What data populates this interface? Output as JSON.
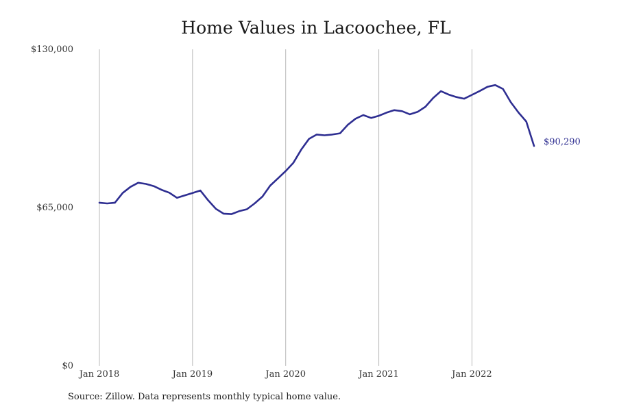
{
  "chart_data": {
    "type": "line",
    "title": "Home Values in Lacoochee, FL",
    "xlabel": "",
    "ylabel": "",
    "x_start": "2018-01",
    "x_tick_labels": [
      "Jan 2018",
      "Jan 2019",
      "Jan 2020",
      "Jan 2021",
      "Jan 2022"
    ],
    "y_tick_labels": [
      "$0",
      "$65,000",
      "$130,000"
    ],
    "ylim": [
      0,
      130000
    ],
    "grid": "vertical",
    "legend": "none",
    "series": [
      {
        "color": "#2e2e91",
        "end_label": "$90,290",
        "x": [
          "2018-01",
          "2018-02",
          "2018-03",
          "2018-04",
          "2018-05",
          "2018-06",
          "2018-07",
          "2018-08",
          "2018-09",
          "2018-10",
          "2018-11",
          "2018-12",
          "2019-01",
          "2019-02",
          "2019-03",
          "2019-04",
          "2019-05",
          "2019-06",
          "2019-07",
          "2019-08",
          "2019-09",
          "2019-10",
          "2019-11",
          "2019-12",
          "2020-01",
          "2020-02",
          "2020-03",
          "2020-04",
          "2020-05",
          "2020-06",
          "2020-07",
          "2020-08",
          "2020-09",
          "2020-10",
          "2020-11",
          "2020-12",
          "2021-01",
          "2021-02",
          "2021-03",
          "2021-04",
          "2021-05",
          "2021-06",
          "2021-07",
          "2021-08",
          "2021-09",
          "2021-10",
          "2021-11",
          "2021-12",
          "2022-01",
          "2022-02",
          "2022-03",
          "2022-04",
          "2022-05",
          "2022-06",
          "2022-07",
          "2022-08",
          "2022-09"
        ],
        "values": [
          67000,
          66700,
          67000,
          71000,
          73500,
          75200,
          74700,
          73800,
          72300,
          71100,
          69000,
          70000,
          71000,
          72000,
          68000,
          64500,
          62500,
          62300,
          63500,
          64300,
          66700,
          69500,
          74000,
          77000,
          80000,
          83400,
          88800,
          93200,
          95000,
          94700,
          95000,
          95500,
          99000,
          101500,
          103000,
          101800,
          102700,
          104000,
          105000,
          104600,
          103300,
          104300,
          106400,
          110000,
          112800,
          111400,
          110400,
          109700,
          111300,
          112900,
          114600,
          115300,
          113700,
          108300,
          104000,
          100300,
          90290
        ]
      }
    ]
  },
  "footer": {
    "source": "Source: Zillow. Data represents monthly typical home value."
  }
}
